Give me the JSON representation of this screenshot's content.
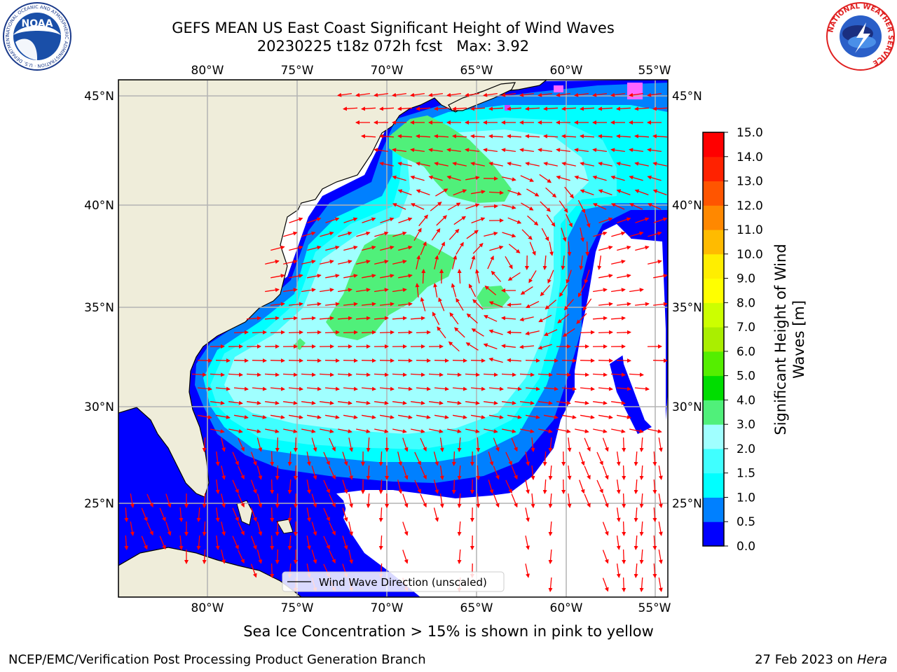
{
  "header": {
    "title_line1": "GEFS MEAN US East Coast Significant Height of Wind Waves",
    "title_line2": "20230225 t18z 072h fcst   Max: 3.92"
  },
  "map": {
    "lon_labels": [
      "80°W",
      "75°W",
      "70°W",
      "65°W",
      "60°W",
      "55°W"
    ],
    "lat_labels": [
      "45°N",
      "40°N",
      "35°N",
      "30°N",
      "25°N"
    ],
    "legend_label": "Wind Wave Direction (unscaled)",
    "land_color": "#efedda",
    "arrow_color": "#ff0000"
  },
  "colorbar": {
    "title_line1": "Significant Height of Wind",
    "title_line2": "Waves [m]",
    "ticks": [
      "0.0",
      "0.5",
      "1.0",
      "1.5",
      "2.0",
      "3.0",
      "4.0",
      "5.0",
      "6.0",
      "7.0",
      "8.0",
      "9.0",
      "10.0",
      "11.0",
      "12.0",
      "13.0",
      "14.0",
      "15.0"
    ],
    "colors": [
      "#0000ff",
      "#0080ff",
      "#00ffff",
      "#40ffff",
      "#a0ffff",
      "#50f07a",
      "#00dd00",
      "#55ee00",
      "#aaee00",
      "#ccff00",
      "#ffff00",
      "#ffee00",
      "#ffbb00",
      "#ff8800",
      "#ff5500",
      "#ff2200",
      "#ff0000"
    ]
  },
  "footer": {
    "note": "Sea Ice Concentration > 15% is shown in pink to yellow",
    "left": "NCEP/EMC/Verification Post Processing Product Generation Branch",
    "right_date": "27 Feb 2023 on ",
    "right_host": "Hera"
  },
  "logos": {
    "noaa_text": "NOAA",
    "noaa_ring": "NATIONAL OCEANIC AND ATMOSPHERIC ADMINISTRATION · U.S. DEPARTMENT OF COMMERCE",
    "nws_ring": "NATIONAL WEATHER SERVICE"
  }
}
